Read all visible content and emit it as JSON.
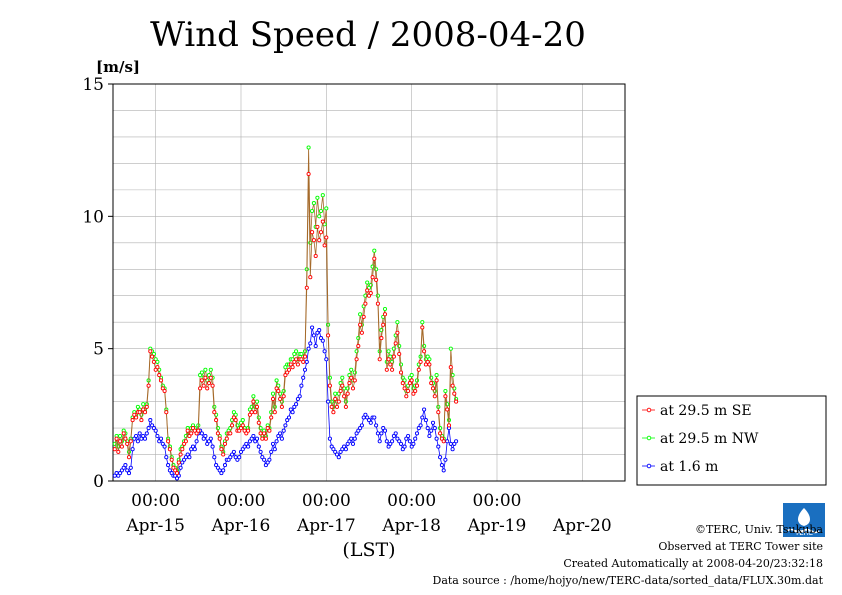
{
  "chart_data": {
    "type": "line",
    "title": "Wind Speed / 2008-04-20",
    "ylabel": "[m/s]",
    "xlabel": "(LST)",
    "ylim": [
      0,
      15
    ],
    "yticks": [
      0,
      5,
      10,
      15
    ],
    "xlim": [
      "2008-04-14T12:00",
      "2008-04-20T12:00"
    ],
    "time_step_minutes": 30,
    "xticks": [
      "00:00",
      "00:00",
      "00:00",
      "00:00",
      "00:00"
    ],
    "xdates": [
      "Apr-15",
      "Apr-16",
      "Apr-17",
      "Apr-18",
      "Apr-19",
      "Apr-20"
    ],
    "grid": true,
    "legend_position": "right",
    "series": [
      {
        "name": "at 29.5 m SE",
        "color": "#ff0000",
        "values": [
          1.2,
          1.6,
          1.1,
          1.5,
          1.3,
          1.8,
          1.6,
          1.4,
          0.9,
          1.5,
          2.3,
          2.5,
          2.4,
          2.6,
          2.6,
          2.3,
          2.7,
          2.6,
          2.8,
          3.6,
          4.9,
          4.7,
          4.5,
          4.2,
          4.3,
          4.0,
          3.8,
          3.5,
          3.4,
          2.6,
          1.5,
          1.2,
          0.8,
          0.5,
          0.4,
          0.3,
          0.7,
          1.0,
          1.2,
          1.4,
          1.5,
          1.9,
          1.7,
          1.8,
          2.0,
          1.9,
          1.8,
          1.9,
          3.5,
          3.8,
          3.6,
          3.9,
          3.5,
          3.7,
          3.9,
          3.6,
          2.6,
          2.3,
          1.8,
          1.6,
          1.2,
          1.0,
          1.4,
          1.6,
          1.8,
          1.8,
          2.1,
          2.4,
          2.3,
          1.9,
          1.9,
          2.0,
          2.1,
          1.9,
          1.8,
          1.9,
          2.5,
          2.6,
          3.0,
          2.6,
          2.8,
          2.2,
          1.8,
          1.6,
          1.8,
          1.6,
          2.0,
          1.9,
          2.4,
          3.1,
          2.6,
          3.5,
          3.4,
          3.1,
          2.8,
          3.2,
          4.0,
          4.1,
          4.2,
          4.4,
          4.3,
          4.5,
          4.6,
          4.4,
          4.6,
          4.6,
          4.5,
          4.7,
          7.3,
          11.6,
          7.7,
          9.4,
          9.1,
          8.5,
          9.6,
          9.1,
          9.4,
          9.8,
          8.9,
          9.2,
          5.5,
          3.6,
          2.8,
          2.6,
          3.1,
          2.8,
          3.0,
          3.4,
          3.6,
          3.2,
          2.8,
          3.3,
          3.7,
          3.9,
          3.5,
          3.8,
          4.6,
          5.1,
          5.9,
          5.6,
          6.2,
          6.7,
          7.2,
          7.0,
          7.1,
          7.7,
          8.4,
          7.6,
          6.7,
          4.6,
          5.4,
          5.9,
          6.3,
          4.2,
          4.6,
          4.4,
          4.2,
          4.7,
          5.2,
          5.6,
          4.8,
          4.1,
          3.7,
          3.5,
          3.2,
          3.4,
          3.7,
          3.8,
          3.3,
          3.4,
          3.6,
          4.2,
          4.5,
          5.8,
          4.9,
          4.4,
          4.5,
          4.4,
          3.7,
          3.5,
          3.2,
          3.8,
          2.6,
          1.8,
          1.6,
          1.5,
          3.2,
          2.7,
          2.1,
          4.3,
          3.6,
          3.3,
          3.0
        ]
      },
      {
        "name": "at 29.5 m NW",
        "color": "#00ff00",
        "values": [
          1.4,
          1.7,
          1.3,
          1.7,
          1.5,
          1.9,
          1.8,
          1.5,
          1.1,
          1.6,
          2.4,
          2.6,
          2.5,
          2.8,
          2.7,
          2.5,
          2.9,
          2.7,
          2.9,
          3.8,
          5.0,
          4.9,
          4.8,
          4.6,
          4.5,
          4.2,
          3.9,
          3.6,
          3.5,
          2.7,
          1.6,
          1.3,
          0.9,
          0.6,
          0.5,
          0.4,
          0.8,
          1.2,
          1.3,
          1.5,
          1.7,
          2.0,
          1.8,
          2.0,
          2.1,
          2.0,
          1.9,
          2.1,
          4.0,
          4.1,
          3.9,
          4.2,
          3.8,
          4.0,
          4.2,
          3.9,
          2.8,
          2.5,
          2.0,
          1.7,
          1.3,
          1.1,
          1.5,
          1.8,
          1.9,
          2.0,
          2.3,
          2.6,
          2.5,
          2.1,
          2.0,
          2.2,
          2.3,
          2.0,
          1.9,
          2.0,
          2.7,
          2.8,
          3.2,
          2.8,
          3.0,
          2.4,
          2.0,
          1.7,
          1.9,
          1.7,
          2.1,
          2.0,
          2.6,
          3.3,
          2.8,
          3.8,
          3.6,
          3.3,
          3.0,
          3.4,
          4.3,
          4.4,
          4.4,
          4.6,
          4.6,
          4.8,
          4.9,
          4.6,
          4.8,
          4.8,
          4.7,
          4.9,
          8.0,
          12.6,
          9.0,
          10.2,
          10.5,
          9.6,
          10.7,
          10.0,
          10.2,
          10.8,
          9.7,
          10.3,
          5.9,
          3.9,
          3.0,
          2.8,
          3.3,
          3.0,
          3.3,
          3.7,
          3.9,
          3.5,
          3.0,
          3.5,
          4.0,
          4.2,
          3.8,
          4.1,
          4.9,
          5.4,
          6.3,
          5.9,
          6.6,
          7.0,
          7.5,
          7.3,
          7.4,
          8.1,
          8.7,
          8.0,
          7.0,
          4.9,
          5.7,
          6.2,
          6.5,
          4.5,
          4.9,
          4.7,
          4.5,
          5.0,
          5.5,
          6.0,
          5.1,
          4.4,
          3.9,
          3.8,
          3.4,
          3.6,
          3.9,
          4.0,
          3.5,
          3.6,
          3.8,
          4.4,
          4.7,
          6.0,
          5.1,
          4.6,
          4.7,
          4.6,
          3.9,
          3.7,
          3.4,
          4.0,
          2.8,
          2.0,
          1.7,
          1.6,
          3.4,
          2.9,
          2.3,
          5.0,
          4.0,
          3.5,
          3.1
        ]
      },
      {
        "name": "at 1.6 m",
        "color": "#0000ff",
        "values": [
          0.2,
          0.3,
          0.2,
          0.3,
          0.4,
          0.5,
          0.6,
          0.4,
          0.3,
          0.5,
          1.2,
          1.6,
          1.7,
          1.5,
          1.8,
          1.6,
          1.7,
          1.6,
          1.8,
          2.0,
          2.3,
          2.1,
          2.0,
          1.9,
          1.7,
          1.5,
          1.6,
          1.4,
          1.3,
          0.9,
          0.6,
          0.4,
          0.3,
          0.2,
          0.2,
          0.1,
          0.2,
          0.5,
          0.7,
          0.8,
          0.9,
          1.0,
          0.9,
          1.2,
          1.3,
          1.2,
          1.5,
          1.8,
          1.9,
          1.8,
          1.6,
          1.7,
          1.4,
          1.5,
          1.6,
          1.3,
          0.9,
          0.6,
          0.5,
          0.4,
          0.3,
          0.4,
          0.6,
          0.8,
          0.8,
          0.9,
          1.0,
          1.1,
          0.9,
          0.8,
          0.9,
          1.1,
          1.2,
          1.3,
          1.4,
          1.3,
          1.5,
          1.6,
          1.7,
          1.5,
          1.6,
          1.3,
          1.1,
          0.9,
          0.8,
          0.6,
          0.7,
          0.8,
          1.1,
          1.4,
          1.2,
          1.5,
          1.7,
          1.8,
          1.6,
          1.9,
          2.1,
          2.3,
          2.4,
          2.7,
          2.6,
          2.8,
          2.9,
          3.1,
          3.2,
          3.6,
          3.9,
          4.2,
          4.5,
          5.0,
          5.2,
          5.8,
          5.5,
          5.1,
          5.6,
          5.7,
          5.4,
          5.3,
          4.9,
          4.6,
          3.0,
          1.6,
          1.3,
          1.2,
          1.1,
          1.0,
          0.9,
          1.1,
          1.2,
          1.3,
          1.2,
          1.4,
          1.5,
          1.6,
          1.4,
          1.6,
          1.8,
          1.9,
          2.0,
          2.1,
          2.4,
          2.5,
          2.4,
          2.3,
          2.2,
          2.4,
          2.4,
          2.1,
          1.8,
          1.5,
          1.8,
          2.0,
          1.9,
          1.5,
          1.3,
          1.4,
          1.5,
          1.7,
          1.8,
          1.6,
          1.5,
          1.4,
          1.2,
          1.3,
          1.6,
          1.7,
          1.5,
          1.3,
          1.4,
          1.6,
          1.8,
          2.0,
          2.1,
          2.4,
          2.7,
          2.3,
          2.0,
          1.7,
          1.9,
          2.2,
          2.0,
          1.6,
          1.3,
          0.9,
          0.6,
          0.4,
          0.8,
          1.5,
          2.0,
          1.4,
          1.2,
          1.4,
          1.5
        ]
      }
    ]
  },
  "footer": {
    "copyright": "©TERC, Univ. Tsukuba",
    "observed": "Observed at TERC Tower site",
    "created": "Created Automatically at 2008-04-20/23:32:18",
    "source": "Data source : /home/hojyo/new/TERC-data/sorted_data/FLUX.30m.dat"
  },
  "logo": {
    "text": "TERC",
    "color": "#1a6fc0"
  }
}
